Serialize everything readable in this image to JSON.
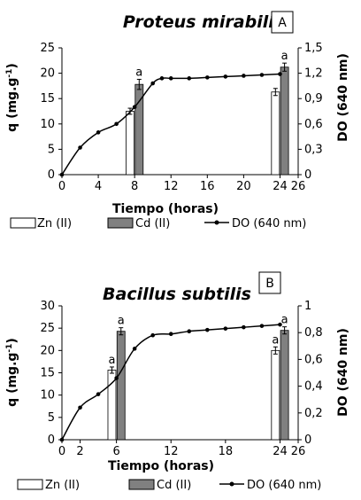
{
  "chart_data": [
    {
      "panel": "A",
      "type": "bar",
      "title": "Proteus mirabilis",
      "xlabel": "Tiempo (horas)",
      "ylabel": "q (mg.g-1)",
      "ylabel_main": "q (mg.g",
      "ylabel_sup": "-1",
      "ylabel_end": ")",
      "y2label": "DO (640 nm)",
      "xlim": [
        0,
        26
      ],
      "xticks": [
        0,
        4,
        8,
        12,
        16,
        20,
        24,
        26
      ],
      "xtick_labels": [
        "0",
        "4",
        "8",
        "12",
        "16",
        "20",
        "24",
        "26"
      ],
      "ylim": [
        0,
        25
      ],
      "yticks": [
        0,
        5,
        10,
        15,
        20,
        25
      ],
      "ytick_labels": [
        "0",
        "5",
        "10",
        "15",
        "20",
        "25"
      ],
      "y2lim": [
        0,
        1.5
      ],
      "y2ticks": [
        0,
        0.3,
        0.6,
        0.9,
        1.2,
        1.5
      ],
      "y2tick_labels": [
        "0",
        "0,3",
        "0,6",
        "0,9",
        "1,2",
        "1,5"
      ],
      "series": [
        {
          "name": "Zn (II)",
          "kind": "bar",
          "color": "#ffffff",
          "x": [
            7.5,
            23.5
          ],
          "values": [
            12.5,
            16.3
          ],
          "errors": [
            0.6,
            0.7
          ],
          "labels": [
            "",
            ""
          ]
        },
        {
          "name": "Cd (II)",
          "kind": "bar",
          "color": "#808080",
          "x": [
            8.5,
            24.5
          ],
          "values": [
            17.8,
            21.2
          ],
          "errors": [
            1.0,
            0.8
          ],
          "labels": [
            "a",
            "a"
          ]
        },
        {
          "name": "DO (640 nm)",
          "kind": "line",
          "axis": "right",
          "color": "#000000",
          "x": [
            0,
            2,
            4,
            6,
            8,
            10,
            11,
            12,
            14,
            16,
            18,
            20,
            22,
            24
          ],
          "values": [
            0,
            0.32,
            0.5,
            0.6,
            0.8,
            1.08,
            1.14,
            1.14,
            1.14,
            1.15,
            1.16,
            1.17,
            1.18,
            1.19
          ]
        }
      ]
    },
    {
      "panel": "B",
      "type": "bar",
      "title": "Bacillus subtilis",
      "xlabel": "Tiempo (horas)",
      "ylabel": "q (mg.g-1)",
      "ylabel_main": "q (mg.g",
      "ylabel_sup": "-1",
      "ylabel_end": ")",
      "y2label": "DO (640 nm)",
      "xlim": [
        0,
        26
      ],
      "xticks": [
        0,
        2,
        6,
        12,
        18,
        24,
        26
      ],
      "xtick_labels": [
        "0",
        "2",
        "6",
        "12",
        "18",
        "24",
        "26"
      ],
      "ylim": [
        0,
        30
      ],
      "yticks": [
        0,
        5,
        10,
        15,
        20,
        25,
        30
      ],
      "ytick_labels": [
        "0",
        "5",
        "10",
        "15",
        "20",
        "25",
        "30"
      ],
      "y2lim": [
        0,
        1
      ],
      "y2ticks": [
        0,
        0.2,
        0.4,
        0.6,
        0.8,
        1
      ],
      "y2tick_labels": [
        "0",
        "0,2",
        "0,4",
        "0,6",
        "0,8",
        "1"
      ],
      "series": [
        {
          "name": "Zn (II)",
          "kind": "bar",
          "color": "#ffffff",
          "x": [
            5.5,
            23.5
          ],
          "values": [
            15.6,
            20.0
          ],
          "errors": [
            0.7,
            0.8
          ],
          "labels": [
            "a",
            "a"
          ]
        },
        {
          "name": "Cd (II)",
          "kind": "bar",
          "color": "#808080",
          "x": [
            6.5,
            24.5
          ],
          "values": [
            24.3,
            24.5
          ],
          "errors": [
            0.8,
            0.8
          ],
          "labels": [
            "a",
            "a"
          ]
        },
        {
          "name": "DO (640 nm)",
          "kind": "line",
          "axis": "right",
          "color": "#000000",
          "x": [
            0,
            2,
            4,
            6,
            8,
            10,
            12,
            14,
            16,
            18,
            20,
            22,
            24
          ],
          "values": [
            0,
            0.24,
            0.34,
            0.46,
            0.68,
            0.78,
            0.79,
            0.81,
            0.82,
            0.83,
            0.84,
            0.85,
            0.86
          ]
        }
      ]
    }
  ]
}
